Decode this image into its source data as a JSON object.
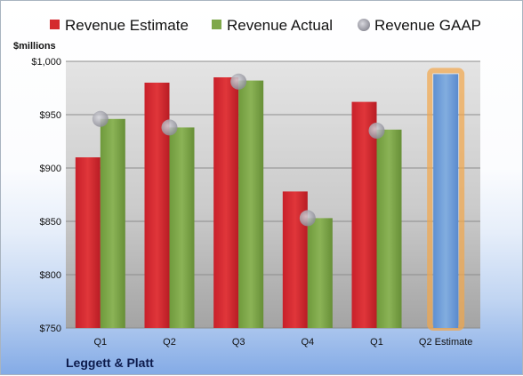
{
  "chart_data": {
    "type": "bar",
    "company": "Leggett & Platt",
    "ylabel": "$millions",
    "ylim": [
      750,
      1000
    ],
    "yticks": [
      750,
      800,
      850,
      900,
      950,
      1000
    ],
    "ytick_labels": [
      "$750",
      "$800",
      "$850",
      "$900",
      "$950",
      "$1,000"
    ],
    "categories": [
      "Q1",
      "Q2",
      "Q3",
      "Q4",
      "Q1",
      "Q2 Estimate"
    ],
    "series": [
      {
        "name": "Revenue Estimate",
        "type": "bar",
        "color": "#d42a2e",
        "values": [
          910,
          980,
          985,
          878,
          962,
          null
        ]
      },
      {
        "name": "Revenue Actual",
        "type": "bar",
        "color": "#7fa84a",
        "values": [
          946,
          938,
          982,
          853,
          936,
          null
        ]
      },
      {
        "name": "Revenue GAAP",
        "type": "marker",
        "color": "#a8a8b0",
        "values": [
          946,
          938,
          981,
          853,
          935,
          null
        ]
      },
      {
        "name": "Q2 Estimate",
        "type": "bar",
        "color": "#6f9fdb",
        "highlight": "#f2a64a",
        "values": [
          null,
          null,
          null,
          null,
          null,
          988
        ]
      }
    ],
    "legend_position": "top",
    "grid": true
  }
}
